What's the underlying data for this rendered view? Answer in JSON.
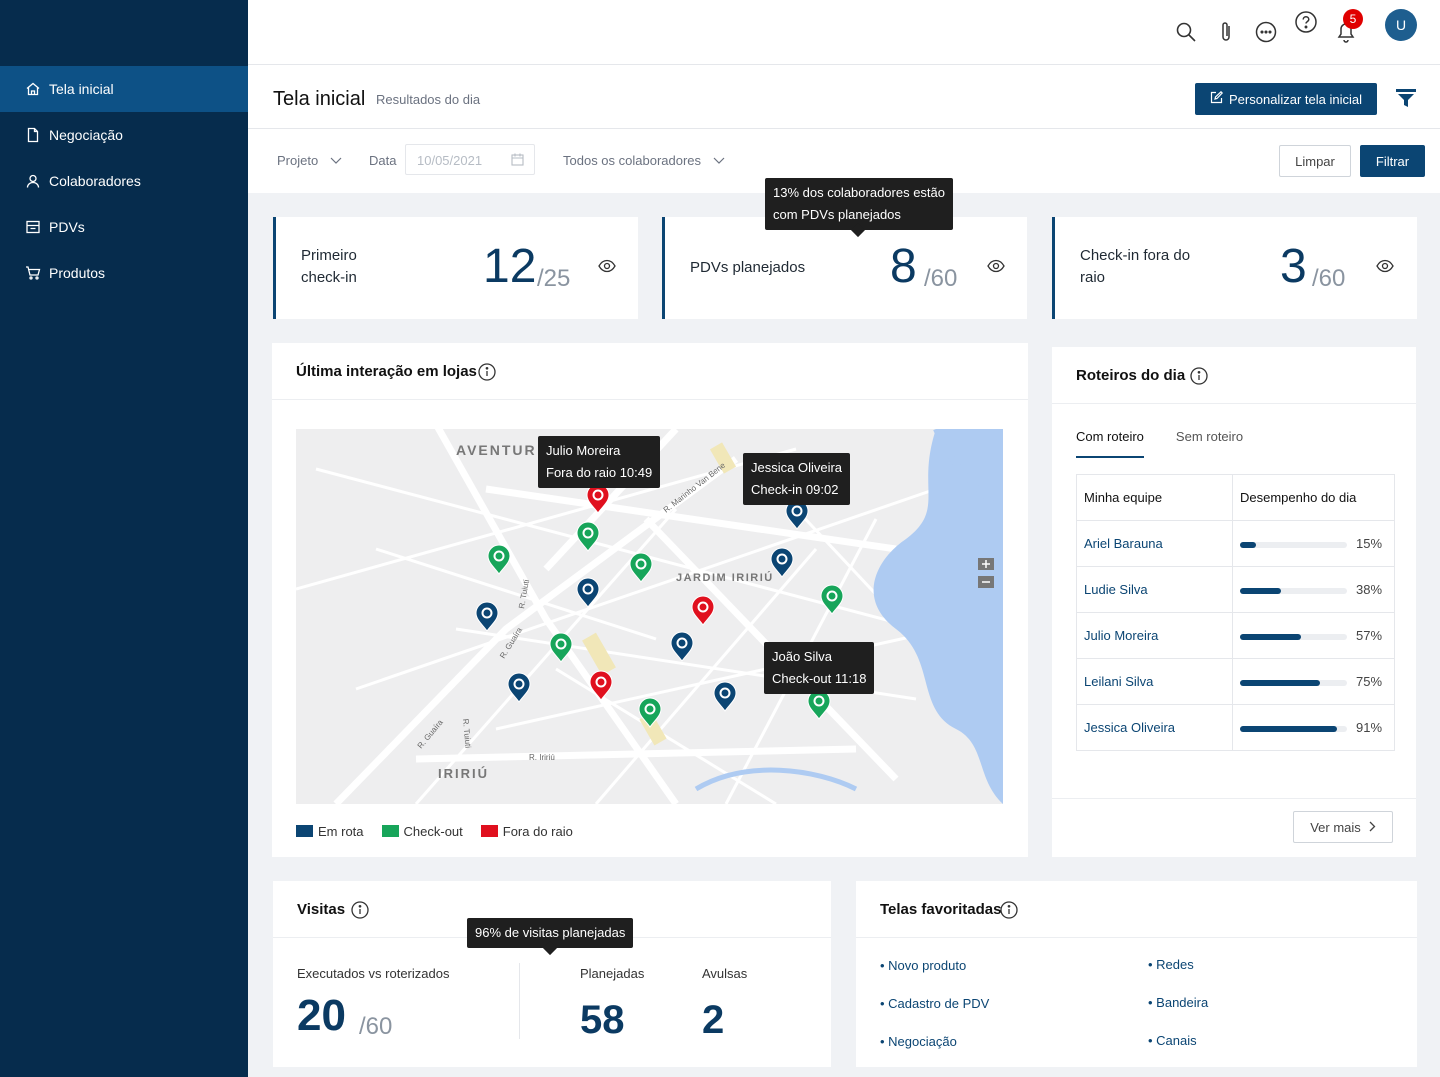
{
  "colors": {
    "sidebar": "#062c4d",
    "active_nav": "#0d5186",
    "primary": "#0b4573",
    "route": "#0b4573",
    "checkout": "#17a55a",
    "outside": "#e0101e"
  },
  "nav": [
    {
      "label": "Tela inicial",
      "icon": "home-icon"
    },
    {
      "label": "Negociação",
      "icon": "document-icon"
    },
    {
      "label": "Colaboradores",
      "icon": "user-icon"
    },
    {
      "label": "PDVs",
      "icon": "store-icon"
    },
    {
      "label": "Produtos",
      "icon": "cart-icon"
    }
  ],
  "topbar": {
    "notifications": "5",
    "avatar": "U"
  },
  "header": {
    "title": "Tela inicial",
    "subtitle": "Resultados do dia",
    "customize": "Personalizar tela inicial"
  },
  "filters": {
    "project": "Projeto",
    "date_label": "Data",
    "date_placeholder": "10/05/2021",
    "collaborators": "Todos os colaboradores",
    "clear": "Limpar",
    "apply": "Filtrar"
  },
  "kpis": [
    {
      "label_l1": "Primeiro",
      "label_l2": "check-in",
      "value": "12",
      "total": "/25"
    },
    {
      "label_l1": "PDVs planejados",
      "label_l2": "",
      "value": "8",
      "total": "/60"
    },
    {
      "label_l1": "Check-in fora do",
      "label_l2": "raio",
      "value": "3",
      "total": "/60"
    }
  ],
  "kpi_tooltip": {
    "line1": "13% dos colaboradores estão",
    "line2": "com PDVs planejados"
  },
  "map_card": {
    "title": "Última interação em lojas",
    "tooltips": [
      {
        "line1": "Julio Moreira",
        "line2": "Fora do raio 10:49"
      },
      {
        "line1": "Jessica Oliveira",
        "line2": "Check-in 09:02"
      },
      {
        "line1": "João Silva",
        "line2": "Check-out 11:18"
      }
    ],
    "places": {
      "a": "AVENTUR",
      "b": "JARDIM IRIRIÚ",
      "c": "IRIRIÚ",
      "s1": "R. Marinho Van Bene",
      "s2": "R. Tuiuti",
      "s3": "R. Guaíra",
      "s4": "R. Guaíra",
      "s5": "R. Tuiuti",
      "s6": "R. Iririú"
    },
    "legend": [
      "Em rota",
      "Check-out",
      "Fora do raio"
    ]
  },
  "roteiros": {
    "title": "Roteiros do dia",
    "tabs": [
      "Com roteiro",
      "Sem roteiro"
    ],
    "col_team": "Minha equipe",
    "col_perf": "Desempenho do dia",
    "rows": [
      {
        "name": "Ariel Barauna",
        "pct": "15%",
        "value": 15
      },
      {
        "name": "Ludie Silva",
        "pct": "38%",
        "value": 38
      },
      {
        "name": "Julio Moreira",
        "pct": "57%",
        "value": 57
      },
      {
        "name": "Leilani Silva",
        "pct": "75%",
        "value": 75
      },
      {
        "name": "Jessica Oliveira",
        "pct": "91%",
        "value": 91
      }
    ],
    "more": "Ver mais"
  },
  "visitas": {
    "title": "Visitas",
    "tooltip": "96% de visitas planejadas",
    "exec_label": "Executados vs roterizados",
    "exec_value": "20",
    "exec_total": "/60",
    "planned_label": "Planejadas",
    "planned_value": "58",
    "loose_label": "Avulsas",
    "loose_value": "2"
  },
  "favoritas": {
    "title": "Telas favoritadas",
    "items": [
      "• Novo produto",
      "• Cadastro de PDV",
      "• Negociação",
      "• Redes",
      "• Bandeira",
      "• Canais"
    ]
  }
}
